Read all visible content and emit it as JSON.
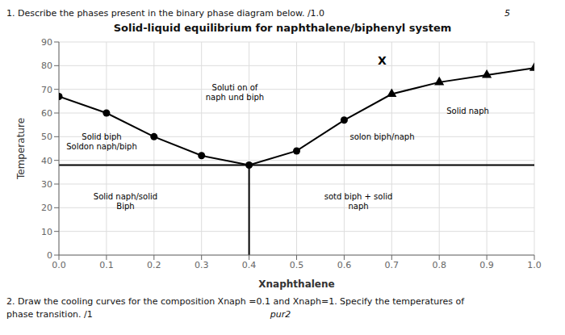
{
  "chart_data": {
    "type": "line",
    "title": "Solid-liquid equilibrium for naphthalene/biphenyl system",
    "x_label": "Xnaphthalene",
    "y_label": "Temperature",
    "xlim": [
      0,
      1
    ],
    "ylim": [
      0,
      90
    ],
    "xticks": [
      {
        "value": 0,
        "label": "0.0"
      },
      0.1,
      0.2,
      0.3,
      0.4,
      0.5,
      0.6,
      0.7,
      0.8,
      0.9,
      {
        "value": 1,
        "label": "1.0"
      }
    ],
    "yticks": [
      0,
      10,
      20,
      30,
      40,
      50,
      60,
      70,
      80,
      90
    ],
    "grid": true,
    "series": [
      {
        "type": "line",
        "color": "#000000",
        "x": [
          0,
          1
        ],
        "values": [
          38,
          38
        ]
      },
      {
        "type": "line",
        "color": "#000000",
        "x": [
          0,
          0.1,
          0.2,
          0.3,
          0.4
        ],
        "values": [
          67,
          60,
          50,
          42,
          38
        ]
      },
      {
        "type": "line",
        "color": "#000000",
        "x": [
          0.4,
          0.5,
          0.6,
          0.7,
          0.8,
          0.9,
          1.0
        ],
        "values": [
          38,
          44,
          57,
          68,
          73,
          76,
          79
        ]
      },
      {
        "type": "line",
        "color": "#000000",
        "x": [
          0.4,
          0.4
        ],
        "values": [
          0,
          38
        ]
      },
      {
        "type": "scatter",
        "marker": "circle",
        "color": "#000000",
        "x": [
          0,
          0.1,
          0.2,
          0.3,
          0.4
        ],
        "values": [
          67,
          60,
          50,
          42,
          38
        ]
      },
      {
        "type": "scatter",
        "marker": "circle",
        "color": "#000000",
        "x": [
          0.5,
          0.6
        ],
        "values": [
          44,
          57
        ]
      },
      {
        "type": "scatter",
        "marker": "triangle",
        "color": "#000000",
        "x": [
          0.7,
          0.8,
          0.9,
          1.0
        ],
        "values": [
          68,
          73,
          76,
          79
        ]
      }
    ],
    "annotations": [
      {
        "text": "X",
        "x": 0.68,
        "y": 82
      },
      {
        "text": "Soluti on of\nnaph und biph",
        "x": 0.37,
        "y": 69
      },
      {
        "text": "Solid biph\nSoldon naph/biph",
        "x": 0.09,
        "y": 48
      },
      {
        "text": "Solid naph",
        "x": 0.86,
        "y": 61
      },
      {
        "text": "solon biph/naph",
        "x": 0.68,
        "y": 50
      },
      {
        "text": "Solid naph/solid\nBiph",
        "x": 0.14,
        "y": 23
      },
      {
        "text": "sotd biph + solid\nnaph",
        "x": 0.63,
        "y": 23
      },
      {
        "text": "1. Describe the phases present in the binary phase diagram below. /1.0"
      },
      {
        "text": "5"
      },
      {
        "text": "2. Draw the cooling curves for the composition Xnaph =0.1 and Xnaph=1. Specify the temperatures of"
      },
      {
        "text": "phase transition. /1"
      },
      {
        "text": "pur2"
      }
    ]
  }
}
